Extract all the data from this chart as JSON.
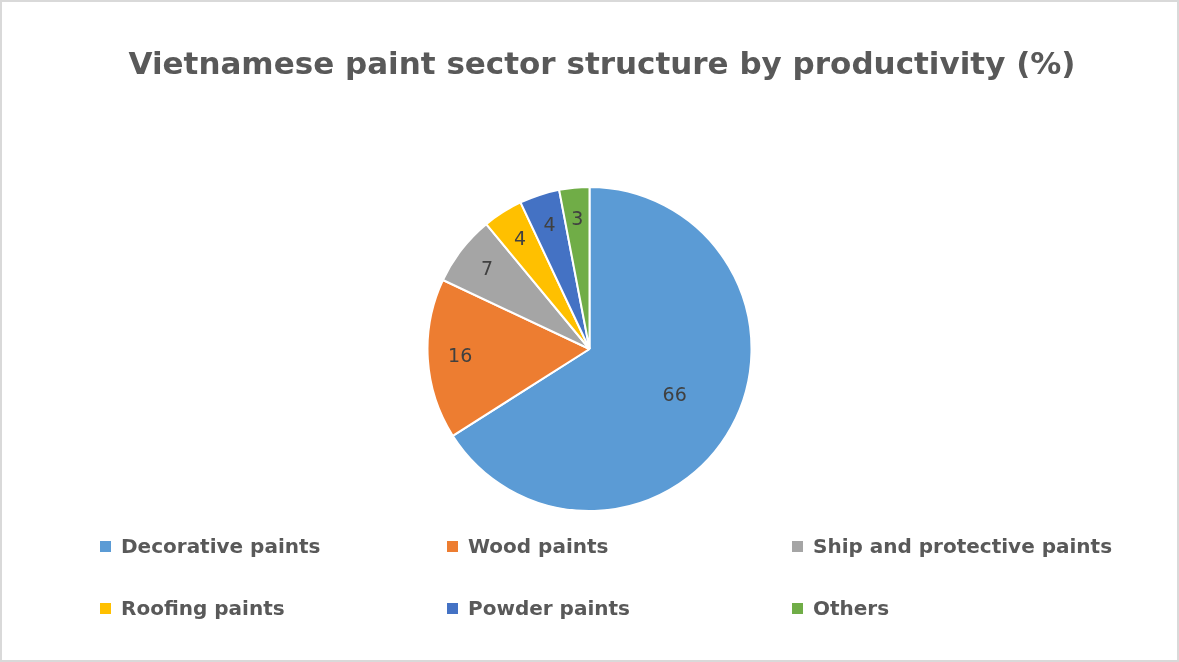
{
  "chart_data": {
    "type": "pie",
    "title": "Vietnamese  paint sector structure by productivity (%)",
    "categories": [
      "Decorative paints",
      "Wood paints",
      "Ship and protective paints",
      "Roofing paints",
      "Powder paints",
      "Others"
    ],
    "values": [
      66,
      16,
      7,
      4,
      4,
      3
    ],
    "colors": [
      "#5b9bd5",
      "#ed7d31",
      "#a5a5a5",
      "#ffc000",
      "#4472c4",
      "#70ad47"
    ],
    "data_labels": true,
    "legend": "bottom"
  }
}
